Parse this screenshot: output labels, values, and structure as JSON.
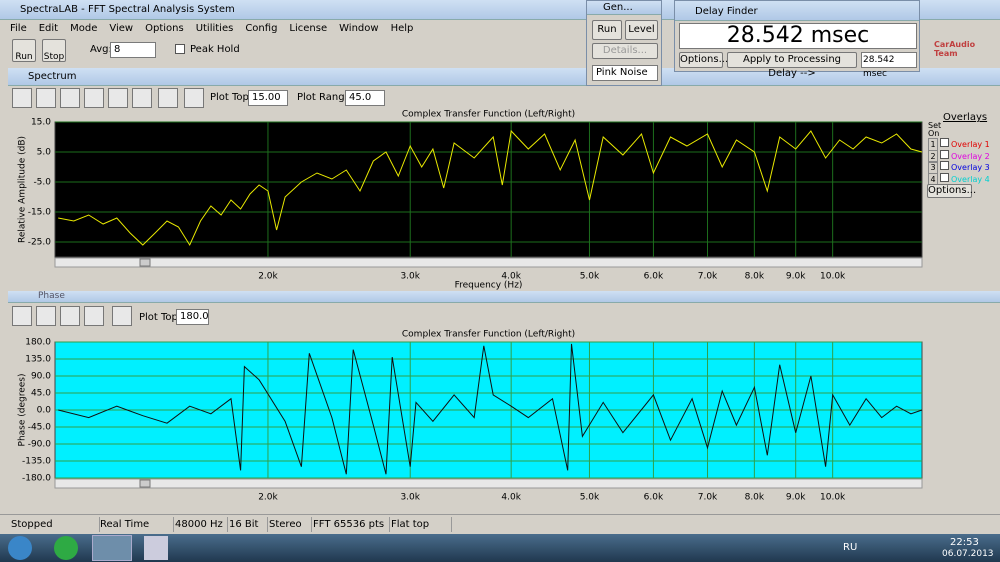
{
  "window": {
    "title": "SpectraLAB - FFT Spectral Analysis System"
  },
  "menu": [
    "File",
    "Edit",
    "Mode",
    "View",
    "Options",
    "Utilities",
    "Config",
    "License",
    "Window",
    "Help"
  ],
  "toolbar": {
    "run": "Run",
    "stop": "Stop",
    "avg_label": "Avg:",
    "avg_value": "8",
    "peak_hold": "Peak Hold"
  },
  "generator": {
    "title": "Gen...",
    "run": "Run",
    "level": "Level",
    "details": "Details...",
    "noise": "Pink Noise"
  },
  "delay_finder": {
    "title": "Delay Finder",
    "value": "28.542 msec",
    "options": "Options...",
    "apply": "Apply to Processing Delay -->",
    "result": "28.542 msec"
  },
  "watermark": "CarAudio Team",
  "spectrum": {
    "title": "Spectrum",
    "plot_top_label": "Plot Top:",
    "plot_top": "15.00",
    "plot_range_label": "Plot Range:",
    "plot_range": "45.0",
    "overlays_title": "Overlays",
    "set_on": "Set On",
    "overlay_numbers": [
      "1",
      "2",
      "3",
      "4"
    ],
    "overlays": [
      {
        "name": "Overlay 1",
        "color": "#e00000"
      },
      {
        "name": "Overlay 2",
        "color": "#e000e0"
      },
      {
        "name": "Overlay 3",
        "color": "#0000e0"
      },
      {
        "name": "Overlay 4",
        "color": "#00d0d0"
      }
    ],
    "options": "Options...",
    "chart_data": {
      "type": "line",
      "title": "Complex Transfer Function (Left/Right)",
      "xlabel": "Frequency (Hz)",
      "ylabel": "Relative Amplitude (dB)",
      "log_x": true,
      "grid": true,
      "background": "#000000",
      "grid_color": "#1d6e1d",
      "color": "#e8e800",
      "xlim": [
        1090,
        12900
      ],
      "ylim": [
        -30,
        15
      ],
      "xticks": [
        {
          "value": 2000,
          "label": "2.0k"
        },
        {
          "value": 3000,
          "label": "3.0k"
        },
        {
          "value": 4000,
          "label": "4.0k"
        },
        {
          "value": 5000,
          "label": "5.0k"
        },
        {
          "value": 6000,
          "label": "6.0k"
        },
        {
          "value": 7000,
          "label": "7.0k"
        },
        {
          "value": 8000,
          "label": "8.0k"
        },
        {
          "value": 9000,
          "label": "9.0k"
        },
        {
          "value": 10000,
          "label": "10.0k"
        }
      ],
      "yticks": [
        {
          "value": 15,
          "label": "15.0"
        },
        {
          "value": 5,
          "label": "5.0"
        },
        {
          "value": -5,
          "label": "-5.0"
        },
        {
          "value": -15,
          "label": "-15.0"
        },
        {
          "value": -25,
          "label": "-25.0"
        }
      ],
      "x": [
        1100,
        1150,
        1200,
        1250,
        1300,
        1350,
        1400,
        1450,
        1500,
        1550,
        1600,
        1650,
        1700,
        1750,
        1800,
        1850,
        1900,
        1950,
        2000,
        2050,
        2100,
        2200,
        2300,
        2400,
        2500,
        2600,
        2700,
        2800,
        2900,
        3000,
        3100,
        3200,
        3300,
        3400,
        3600,
        3800,
        3900,
        4000,
        4200,
        4400,
        4600,
        4800,
        5000,
        5200,
        5500,
        5800,
        6000,
        6300,
        6600,
        7000,
        7300,
        7600,
        8000,
        8300,
        8600,
        9000,
        9400,
        9800,
        10200,
        10600,
        11000,
        11500,
        12000,
        12500,
        12900
      ],
      "values": [
        -17,
        -18,
        -16,
        -19,
        -17,
        -22,
        -26,
        -22,
        -18,
        -20,
        -26,
        -18,
        -13,
        -16,
        -11,
        -14,
        -9,
        -6,
        -8,
        -21,
        -10,
        -5,
        -2,
        -4,
        -1,
        -8,
        2,
        5,
        -3,
        7,
        0,
        6,
        -7,
        8,
        3,
        10,
        -6,
        12,
        6,
        11,
        -1,
        9,
        -11,
        10,
        4,
        11,
        -2,
        10,
        7,
        11,
        0,
        9,
        5,
        -8,
        10,
        6,
        12,
        3,
        9,
        6,
        10,
        8,
        11,
        6,
        5
      ]
    }
  },
  "phase": {
    "title": "Phase",
    "plot_top_label": "Plot Top:",
    "plot_top": "180.0",
    "chart_data": {
      "type": "line",
      "title": "Complex Transfer Function (Left/Right)",
      "ylabel": "Phase (degrees)",
      "log_x": true,
      "grid": true,
      "background": "#00f0ff",
      "grid_color": "#2fa04a",
      "color": "#101010",
      "xlim": [
        1090,
        12900
      ],
      "ylim": [
        -180,
        180
      ],
      "xticks": [
        {
          "value": 2000,
          "label": "2.0k"
        },
        {
          "value": 3000,
          "label": "3.0k"
        },
        {
          "value": 4000,
          "label": "4.0k"
        },
        {
          "value": 5000,
          "label": "5.0k"
        },
        {
          "value": 6000,
          "label": "6.0k"
        },
        {
          "value": 7000,
          "label": "7.0k"
        },
        {
          "value": 8000,
          "label": "8.0k"
        },
        {
          "value": 9000,
          "label": "9.0k"
        },
        {
          "value": 10000,
          "label": "10.0k"
        }
      ],
      "yticks": [
        {
          "value": 180,
          "label": "180.0"
        },
        {
          "value": 135,
          "label": "135.0"
        },
        {
          "value": 90,
          "label": "90.0"
        },
        {
          "value": 45,
          "label": "45.0"
        },
        {
          "value": 0,
          "label": "0.0"
        },
        {
          "value": -45,
          "label": "-45.0"
        },
        {
          "value": -90,
          "label": "-90.0"
        },
        {
          "value": -135,
          "label": "-135.0"
        },
        {
          "value": -180,
          "label": "-180.0"
        }
      ],
      "x": [
        1100,
        1200,
        1300,
        1400,
        1500,
        1600,
        1700,
        1800,
        1850,
        1870,
        1950,
        2100,
        2200,
        2250,
        2400,
        2500,
        2550,
        2700,
        2800,
        2850,
        3000,
        3050,
        3200,
        3400,
        3600,
        3700,
        3800,
        4000,
        4200,
        4500,
        4700,
        4750,
        4900,
        5200,
        5500,
        6000,
        6300,
        6700,
        7000,
        7300,
        7600,
        8000,
        8300,
        8600,
        9000,
        9400,
        9800,
        10000,
        10500,
        11000,
        11500,
        12000,
        12500,
        12900
      ],
      "values": [
        0,
        -20,
        10,
        -15,
        -35,
        10,
        -10,
        30,
        -160,
        115,
        80,
        -30,
        -150,
        150,
        -20,
        -170,
        160,
        -40,
        -170,
        140,
        -150,
        20,
        -30,
        40,
        -20,
        170,
        40,
        10,
        -20,
        30,
        -160,
        175,
        -70,
        20,
        -60,
        40,
        -80,
        30,
        -100,
        50,
        -40,
        60,
        -120,
        120,
        -60,
        90,
        -150,
        40,
        -40,
        30,
        -20,
        10,
        -10,
        0
      ]
    }
  },
  "status": [
    "Stopped",
    "Real Time",
    "48000 Hz",
    "16 Bit",
    "Stereo",
    "FFT 65536 pts",
    "Flat top"
  ],
  "taskbar": {
    "lang": "RU",
    "time": "22:53",
    "date": "06.07.2013"
  }
}
